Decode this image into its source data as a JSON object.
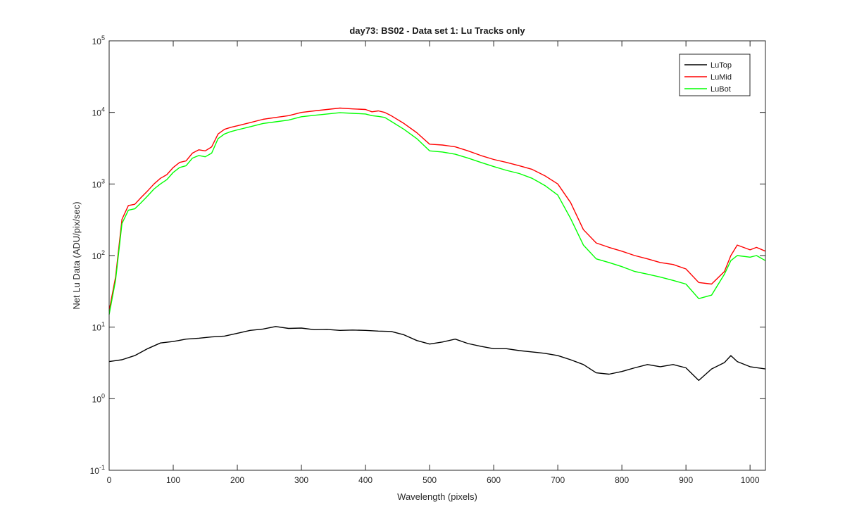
{
  "chart_data": {
    "type": "line",
    "title": "day73: BS02 - Data set 1: Lu Tracks only",
    "xlabel": "Wavelength (pixels)",
    "ylabel": "Net Lu Data (ADU/pix/sec)",
    "xlim": [
      0,
      1024
    ],
    "ylim": [
      0.1,
      100000
    ],
    "yscale": "log",
    "grid": false,
    "legend_position": "top-right",
    "x_ticks": [
      "0",
      "100",
      "200",
      "300",
      "400",
      "500",
      "600",
      "700",
      "800",
      "900",
      "1000"
    ],
    "y_ticks": [
      {
        "base": "10",
        "exp": "-1"
      },
      {
        "base": "10",
        "exp": "0"
      },
      {
        "base": "10",
        "exp": "1"
      },
      {
        "base": "10",
        "exp": "2"
      },
      {
        "base": "10",
        "exp": "3"
      },
      {
        "base": "10",
        "exp": "4"
      },
      {
        "base": "10",
        "exp": "5"
      }
    ],
    "series": [
      {
        "name": "LuTop",
        "color": "#000000",
        "x": [
          0,
          20,
          40,
          60,
          80,
          100,
          120,
          140,
          160,
          180,
          200,
          220,
          240,
          260,
          280,
          300,
          320,
          340,
          360,
          380,
          400,
          420,
          440,
          460,
          480,
          500,
          520,
          540,
          560,
          580,
          600,
          620,
          640,
          660,
          680,
          700,
          720,
          740,
          760,
          780,
          800,
          820,
          840,
          860,
          880,
          900,
          920,
          940,
          960,
          970,
          980,
          1000,
          1024
        ],
        "y": [
          3.3,
          3.5,
          4.0,
          5.0,
          6.0,
          6.3,
          6.8,
          7.0,
          7.3,
          7.5,
          8.2,
          9.0,
          9.4,
          10.2,
          9.6,
          9.7,
          9.2,
          9.3,
          9.0,
          9.1,
          9.0,
          8.8,
          8.7,
          7.8,
          6.5,
          5.8,
          6.2,
          6.8,
          5.9,
          5.4,
          5.0,
          5.0,
          4.7,
          4.5,
          4.3,
          4.0,
          3.5,
          3.0,
          2.3,
          2.2,
          2.4,
          2.7,
          3.0,
          2.8,
          3.0,
          2.7,
          1.8,
          2.6,
          3.2,
          4.0,
          3.3,
          2.8,
          2.6
        ]
      },
      {
        "name": "LuMid",
        "color": "#ff0000",
        "x": [
          0,
          10,
          20,
          30,
          40,
          50,
          60,
          70,
          80,
          90,
          100,
          110,
          120,
          130,
          140,
          150,
          160,
          170,
          180,
          190,
          200,
          220,
          240,
          260,
          280,
          300,
          320,
          340,
          360,
          380,
          400,
          410,
          420,
          430,
          440,
          460,
          480,
          500,
          520,
          540,
          560,
          580,
          600,
          620,
          640,
          660,
          680,
          700,
          720,
          740,
          760,
          780,
          800,
          820,
          840,
          860,
          880,
          900,
          920,
          940,
          960,
          970,
          980,
          1000,
          1010,
          1024
        ],
        "y": [
          17,
          50,
          320,
          500,
          520,
          650,
          800,
          1000,
          1200,
          1350,
          1700,
          2000,
          2100,
          2700,
          3000,
          2900,
          3300,
          5000,
          5800,
          6200,
          6500,
          7200,
          8000,
          8500,
          9000,
          10000,
          10500,
          11000,
          11500,
          11200,
          11000,
          10200,
          10500,
          10000,
          9000,
          7000,
          5200,
          3600,
          3500,
          3300,
          2900,
          2500,
          2200,
          2000,
          1800,
          1600,
          1300,
          1000,
          550,
          230,
          150,
          130,
          115,
          100,
          90,
          80,
          75,
          65,
          42,
          40,
          60,
          100,
          140,
          120,
          130,
          115
        ]
      },
      {
        "name": "LuBot",
        "color": "#00ff00",
        "x": [
          0,
          10,
          20,
          30,
          40,
          50,
          60,
          70,
          80,
          90,
          100,
          110,
          120,
          130,
          140,
          150,
          160,
          170,
          180,
          190,
          200,
          220,
          240,
          260,
          280,
          300,
          320,
          340,
          360,
          380,
          400,
          410,
          420,
          430,
          440,
          460,
          480,
          500,
          520,
          540,
          560,
          580,
          600,
          620,
          640,
          660,
          680,
          700,
          720,
          740,
          760,
          780,
          800,
          820,
          840,
          860,
          880,
          900,
          920,
          940,
          960,
          970,
          980,
          1000,
          1010,
          1024
        ],
        "y": [
          15,
          45,
          280,
          430,
          450,
          550,
          680,
          850,
          1000,
          1150,
          1450,
          1700,
          1800,
          2300,
          2500,
          2400,
          2700,
          4300,
          5000,
          5400,
          5700,
          6300,
          7000,
          7400,
          7800,
          8700,
          9100,
          9500,
          9900,
          9700,
          9500,
          9000,
          8800,
          8500,
          7500,
          5800,
          4300,
          2900,
          2800,
          2600,
          2300,
          2000,
          1750,
          1550,
          1400,
          1200,
          950,
          700,
          330,
          140,
          90,
          80,
          70,
          60,
          55,
          50,
          45,
          40,
          25,
          28,
          55,
          85,
          100,
          95,
          100,
          85
        ]
      }
    ]
  }
}
